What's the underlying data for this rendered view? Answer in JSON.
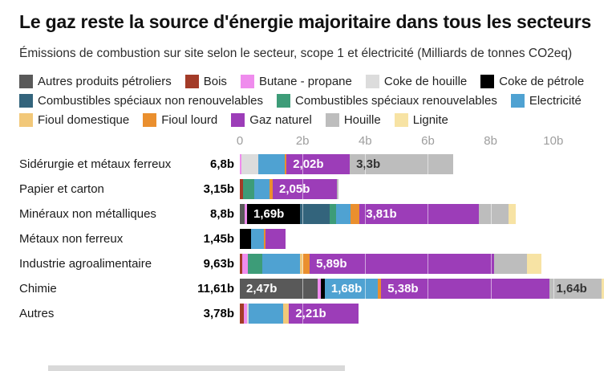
{
  "header": {
    "title": "Le gaz reste la source d'énergie majoritaire dans tous les secteurs",
    "subtitle": "Émissions de combustion sur site selon le secteur, scope 1 et électricité (Milliards de tonnes CO2eq)"
  },
  "legend": {
    "items": [
      "Autres produits pétroliers",
      "Bois",
      "Butane - propane",
      "Coke de houille",
      "Coke de pétrole",
      "Combustibles spéciaux non renouvelables",
      "Combustibles spéciaux renouvelables",
      "Electricité",
      "Fioul domestique",
      "Fioul lourd",
      "Gaz naturel",
      "Houille",
      "Lignite"
    ]
  },
  "chart_data": {
    "type": "bar",
    "orientation": "horizontal",
    "stacked": true,
    "unit": "Milliards de tonnes CO2eq",
    "xlim": [
      0,
      12
    ],
    "grid": "white-lines-over-bars",
    "x_ticks": [
      {
        "label": "0",
        "value": 0
      },
      {
        "label": "2b",
        "value": 2
      },
      {
        "label": "4b",
        "value": 4
      },
      {
        "label": "6b",
        "value": 6
      },
      {
        "label": "8b",
        "value": 8
      },
      {
        "label": "10b",
        "value": 10
      }
    ],
    "colors": {
      "Autres produits pétroliers": "#595959",
      "Bois": "#a33b28",
      "Butane - propane": "#ef8ced",
      "Coke de houille": "#dcdcdc",
      "Coke de pétrole": "#000000",
      "Combustibles spéciaux non renouvelables": "#33647c",
      "Combustibles spéciaux renouvelables": "#3d9c78",
      "Electricité": "#4fa2d2",
      "Fioul domestique": "#f2c879",
      "Fioul lourd": "#ea8f2e",
      "Gaz naturel": "#9c3db8",
      "Houille": "#bdbdbd",
      "Lignite": "#f7e3a4"
    },
    "rows": [
      {
        "label": "Sidérurgie et métaux ferreux",
        "total": "6,8b",
        "segments": [
          {
            "name": "Butane - propane",
            "value": 0.06
          },
          {
            "name": "Coke de houille",
            "value": 0.52
          },
          {
            "name": "Electricité",
            "value": 0.85
          },
          {
            "name": "Fioul lourd",
            "value": 0.06
          },
          {
            "name": "Gaz naturel",
            "value": 2.02,
            "label": "2,02b"
          },
          {
            "name": "Houille",
            "value": 3.3,
            "label": "3,3b",
            "label_color": "#333333"
          }
        ]
      },
      {
        "label": "Papier et carton",
        "total": "3,15b",
        "segments": [
          {
            "name": "Bois",
            "value": 0.1
          },
          {
            "name": "Combustibles spéciaux renouvelables",
            "value": 0.35
          },
          {
            "name": "Electricité",
            "value": 0.5
          },
          {
            "name": "Fioul lourd",
            "value": 0.1
          },
          {
            "name": "Gaz naturel",
            "value": 2.05,
            "label": "2,05b"
          },
          {
            "name": "Houille",
            "value": 0.05
          }
        ]
      },
      {
        "label": "Minéraux non métalliques",
        "total": "8,8b",
        "segments": [
          {
            "name": "Autres produits pétroliers",
            "value": 0.15
          },
          {
            "name": "Butane - propane",
            "value": 0.08
          },
          {
            "name": "Coke de pétrole",
            "value": 1.69,
            "label": "1,69b"
          },
          {
            "name": "Combustibles spéciaux non renouvelables",
            "value": 0.95
          },
          {
            "name": "Combustibles spéciaux renouvelables",
            "value": 0.2
          },
          {
            "name": "Electricité",
            "value": 0.45
          },
          {
            "name": "Fioul lourd",
            "value": 0.3
          },
          {
            "name": "Gaz naturel",
            "value": 3.81,
            "label": "3,81b"
          },
          {
            "name": "Houille",
            "value": 0.95
          },
          {
            "name": "Lignite",
            "value": 0.22
          }
        ]
      },
      {
        "label": "Métaux non ferreux",
        "total": "1,45b",
        "segments": [
          {
            "name": "Coke de pétrole",
            "value": 0.35
          },
          {
            "name": "Electricité",
            "value": 0.42
          },
          {
            "name": "Fioul lourd",
            "value": 0.04
          },
          {
            "name": "Gaz naturel",
            "value": 0.64
          }
        ]
      },
      {
        "label": "Industrie agroalimentaire",
        "total": "9,63b",
        "segments": [
          {
            "name": "Bois",
            "value": 0.08
          },
          {
            "name": "Butane - propane",
            "value": 0.18
          },
          {
            "name": "Combustibles spéciaux renouvelables",
            "value": 0.45
          },
          {
            "name": "Electricité",
            "value": 1.2
          },
          {
            "name": "Fioul domestique",
            "value": 0.12
          },
          {
            "name": "Fioul lourd",
            "value": 0.2
          },
          {
            "name": "Gaz naturel",
            "value": 5.89,
            "label": "5,89b"
          },
          {
            "name": "Houille",
            "value": 1.05
          },
          {
            "name": "Lignite",
            "value": 0.46
          }
        ]
      },
      {
        "label": "Chimie",
        "total": "11,61b",
        "segments": [
          {
            "name": "Autres produits pétroliers",
            "value": 2.47,
            "label": "2,47b"
          },
          {
            "name": "Butane - propane",
            "value": 0.12
          },
          {
            "name": "Coke de pétrole",
            "value": 0.12
          },
          {
            "name": "Electricité",
            "value": 1.68,
            "label": "1,68b"
          },
          {
            "name": "Fioul lourd",
            "value": 0.12
          },
          {
            "name": "Gaz naturel",
            "value": 5.38,
            "label": "5,38b"
          },
          {
            "name": "Houille",
            "value": 1.64,
            "label": "1,64b",
            "label_color": "#333333"
          },
          {
            "name": "Lignite",
            "value": 0.08
          }
        ]
      },
      {
        "label": "Autres",
        "total": "3,78b",
        "segments": [
          {
            "name": "Bois",
            "value": 0.12
          },
          {
            "name": "Butane - propane",
            "value": 0.1
          },
          {
            "name": "Coke de houille",
            "value": 0.05
          },
          {
            "name": "Electricité",
            "value": 1.1
          },
          {
            "name": "Fioul domestique",
            "value": 0.2
          },
          {
            "name": "Gaz naturel",
            "value": 2.21,
            "label": "2,21b"
          }
        ]
      }
    ]
  }
}
